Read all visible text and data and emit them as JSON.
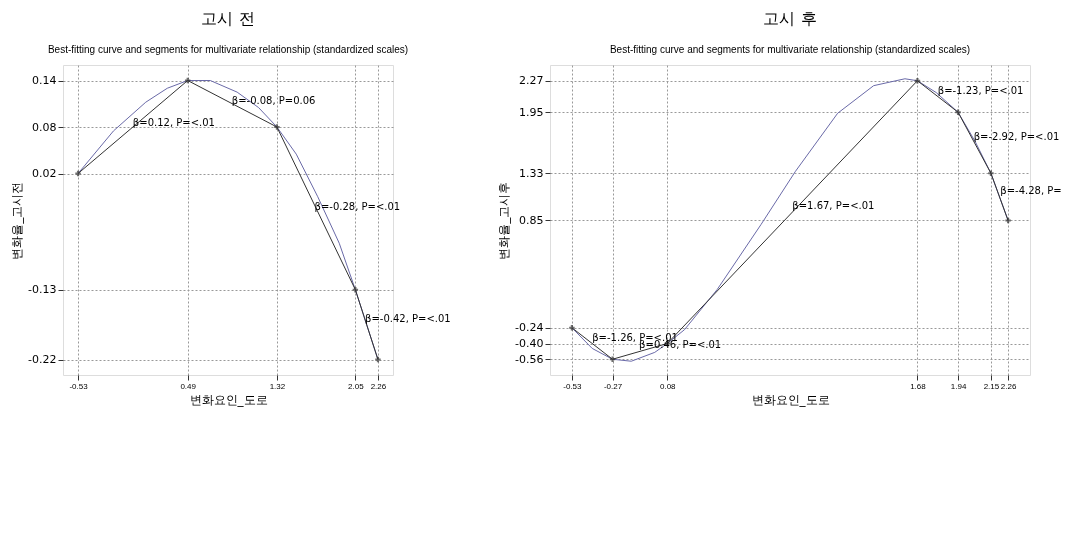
{
  "chart_data": [
    {
      "type": "line",
      "title": "고시 전",
      "subtitle": "Best-fitting curve and segments for multivariate relationship (standardized scales)",
      "xlabel": "변화요인_도로",
      "ylabel": "변화율_고시전",
      "xlim": [
        -0.67,
        2.4
      ],
      "ylim": [
        -0.24,
        0.16
      ],
      "xticks": [
        -0.53,
        0.49,
        1.32,
        2.05,
        2.26
      ],
      "yticks": [
        -0.22,
        -0.13,
        0.02,
        0.08,
        0.14
      ],
      "grid": true,
      "legend": false,
      "series": [
        {
          "color": "#6a6aa8",
          "marker": "none",
          "x": [
            -0.53,
            -0.2,
            0.1,
            0.3,
            0.49,
            0.7,
            0.95,
            1.15,
            1.32,
            1.5,
            1.7,
            1.9,
            2.05,
            2.26
          ],
          "values": [
            0.02,
            0.075,
            0.112,
            0.13,
            0.14,
            0.14,
            0.125,
            0.105,
            0.08,
            0.045,
            -0.01,
            -0.07,
            -0.13,
            -0.22
          ]
        },
        {
          "color": "#333333",
          "marker": "cross",
          "x": [
            -0.53,
            0.49,
            1.32,
            2.05,
            2.26
          ],
          "values": [
            0.02,
            0.14,
            0.08,
            -0.13,
            -0.22
          ]
        }
      ],
      "annotations": [
        {
          "text": "β=0.12, P=<.01",
          "x": -0.02,
          "y": 0.085
        },
        {
          "text": "β=-0.08, P=0.06",
          "x": 0.9,
          "y": 0.113
        },
        {
          "text": "β=-0.28, P=<.01",
          "x": 1.67,
          "y": -0.023
        },
        {
          "text": "β=-0.42, P=<.01",
          "x": 2.14,
          "y": -0.168
        }
      ]
    },
    {
      "type": "line",
      "title": "고시 후",
      "subtitle": "Best-fitting curve and segments for multivariate relationship (standardized scales)",
      "xlabel": "변화요인_도로",
      "ylabel": "변화율_고시후",
      "xlim": [
        -0.67,
        2.4
      ],
      "ylim": [
        -0.72,
        2.43
      ],
      "xticks": [
        -0.53,
        -0.27,
        0.08,
        1.68,
        1.94,
        2.15,
        2.26
      ],
      "yticks": [
        -0.56,
        {
          "value": -0.4,
          "label": "-0.40"
        },
        -0.24,
        0.85,
        1.33,
        1.95,
        2.27
      ],
      "grid": true,
      "legend": false,
      "series": [
        {
          "color": "#6a6aa8",
          "marker": "none",
          "x": [
            -0.53,
            -0.4,
            -0.27,
            -0.15,
            0.0,
            0.08,
            0.19,
            0.4,
            0.68,
            0.9,
            1.17,
            1.4,
            1.6,
            1.68,
            1.8,
            1.94,
            2.05,
            2.15,
            2.26
          ],
          "values": [
            -0.24,
            -0.45,
            -0.56,
            -0.58,
            -0.49,
            -0.4,
            -0.26,
            0.15,
            0.81,
            1.35,
            1.94,
            2.22,
            2.29,
            2.27,
            2.15,
            1.95,
            1.65,
            1.33,
            0.85
          ]
        },
        {
          "color": "#333333",
          "marker": "cross",
          "x": [
            -0.53,
            -0.27,
            0.08,
            1.68,
            1.94,
            2.15,
            2.26
          ],
          "values": [
            -0.24,
            -0.56,
            -0.4,
            2.27,
            1.95,
            1.33,
            0.85
          ]
        }
      ],
      "annotations": [
        {
          "text": "β=-1.26, P=<.01",
          "x": -0.4,
          "y": -0.34
        },
        {
          "text": "β=0.46, P=<.01",
          "x": -0.1,
          "y": -0.42
        },
        {
          "text": "β=1.67, P=<.01",
          "x": 0.88,
          "y": 1.0
        },
        {
          "text": "β=-1.23, P=<.01",
          "x": 1.81,
          "y": 2.17
        },
        {
          "text": "β=-2.92, P=<.01",
          "x": 2.04,
          "y": 1.7
        },
        {
          "text": "β=-4.28, P=",
          "x": 2.21,
          "y": 1.15
        }
      ]
    }
  ]
}
